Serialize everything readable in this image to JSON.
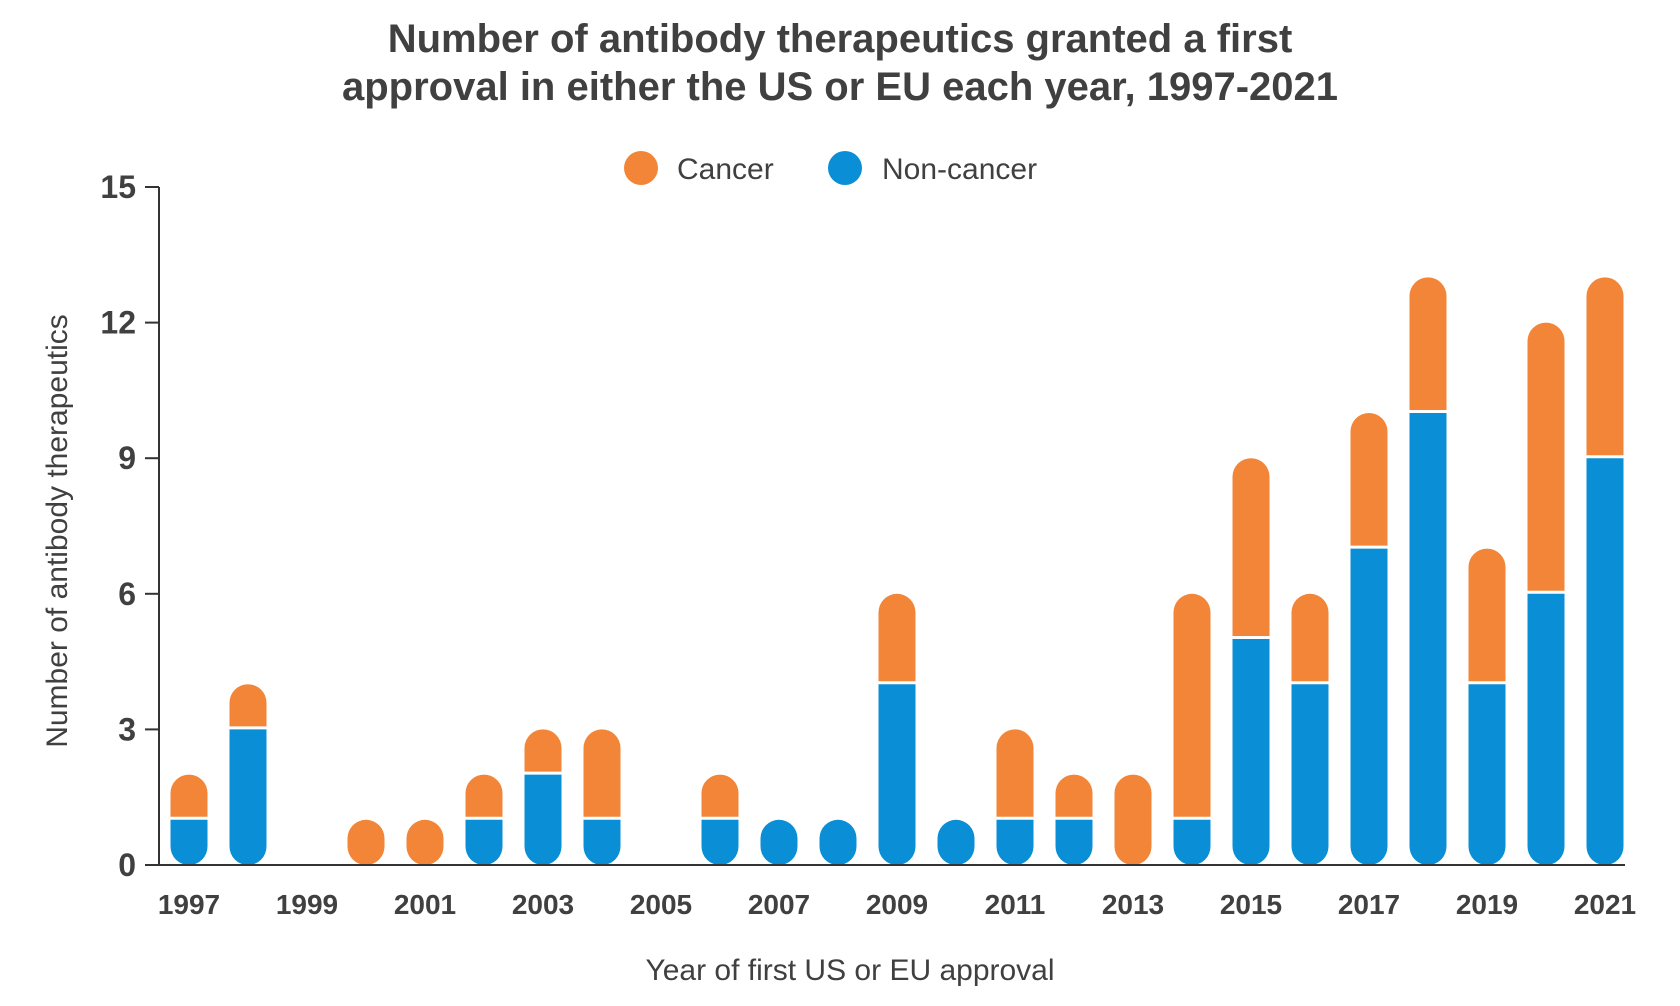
{
  "chart_data": {
    "type": "bar",
    "stacked": true,
    "title": [
      "Number of antibody therapeutics granted a first",
      "approval in either the US or EU each year, 1997-2021"
    ],
    "xlabel": "Year of first US or EU approval",
    "ylabel": "Number of antibody therapeutics",
    "ylim": [
      0,
      15
    ],
    "yticks": [
      "0",
      "3",
      "6",
      "9",
      "12",
      "15"
    ],
    "categories": [
      "1997",
      "1998",
      "1999",
      "2000",
      "2001",
      "2002",
      "2003",
      "2004",
      "2005",
      "2006",
      "2007",
      "2008",
      "2009",
      "2010",
      "2011",
      "2012",
      "2013",
      "2014",
      "2015",
      "2016",
      "2017",
      "2018",
      "2019",
      "2020",
      "2021"
    ],
    "xtick_labels": [
      "1997",
      "1999",
      "2001",
      "2003",
      "2005",
      "2007",
      "2009",
      "2011",
      "2013",
      "2015",
      "2017",
      "2019",
      "2021"
    ],
    "legend": {
      "placement": "top-center"
    },
    "series": [
      {
        "name": "Non-cancer",
        "color": "#0a8fd6",
        "values": [
          1,
          3,
          0,
          0,
          0,
          1,
          2,
          1,
          0,
          1,
          1,
          1,
          4,
          1,
          1,
          1,
          0,
          1,
          5,
          4,
          7,
          10,
          4,
          6,
          9
        ]
      },
      {
        "name": "Cancer",
        "color": "#f28538",
        "values": [
          1,
          1,
          0,
          1,
          1,
          1,
          1,
          2,
          0,
          1,
          0,
          0,
          2,
          0,
          2,
          1,
          2,
          5,
          4,
          2,
          3,
          3,
          3,
          6,
          4
        ]
      }
    ],
    "grid": false
  }
}
